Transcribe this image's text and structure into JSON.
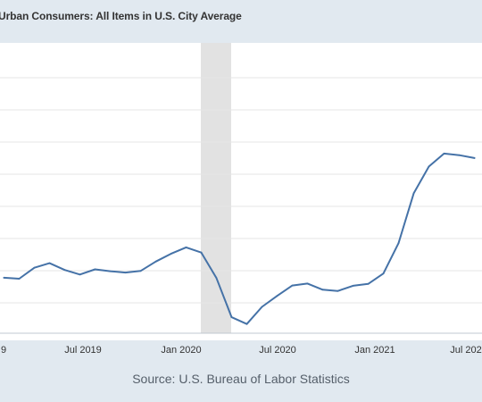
{
  "chart_data": {
    "type": "line",
    "title": "Urban Consumers: All Items in U.S. City Average",
    "xlabel": "",
    "ylabel": "",
    "x_tick_labels": [
      "9",
      "Jul 2019",
      "Jan 2020",
      "Jul 2020",
      "Jan 2021",
      "Jul 202"
    ],
    "recession_shading": {
      "start": "2020-02",
      "end": "2020-04"
    },
    "grid": true,
    "series": [
      {
        "color": "#4572a7",
        "x": [
          "2019-01",
          "2019-02",
          "2019-03",
          "2019-04",
          "2019-05",
          "2019-06",
          "2019-07",
          "2019-08",
          "2019-09",
          "2019-10",
          "2019-11",
          "2019-12",
          "2020-01",
          "2020-02",
          "2020-03",
          "2020-04",
          "2020-05",
          "2020-06",
          "2020-07",
          "2020-08",
          "2020-09",
          "2020-10",
          "2020-11",
          "2020-12",
          "2021-01",
          "2021-02",
          "2021-03",
          "2021-04",
          "2021-05",
          "2021-06",
          "2021-07",
          "2021-08"
        ],
        "values": [
          1.55,
          1.52,
          1.86,
          2.0,
          1.79,
          1.65,
          1.81,
          1.75,
          1.71,
          1.76,
          2.05,
          2.29,
          2.49,
          2.33,
          1.54,
          0.33,
          0.12,
          0.65,
          0.99,
          1.31,
          1.37,
          1.18,
          1.14,
          1.3,
          1.36,
          1.68,
          2.62,
          4.16,
          4.99,
          5.39,
          5.34,
          5.25
        ]
      }
    ]
  },
  "source": "Source: U.S. Bureau of Labor Statistics"
}
